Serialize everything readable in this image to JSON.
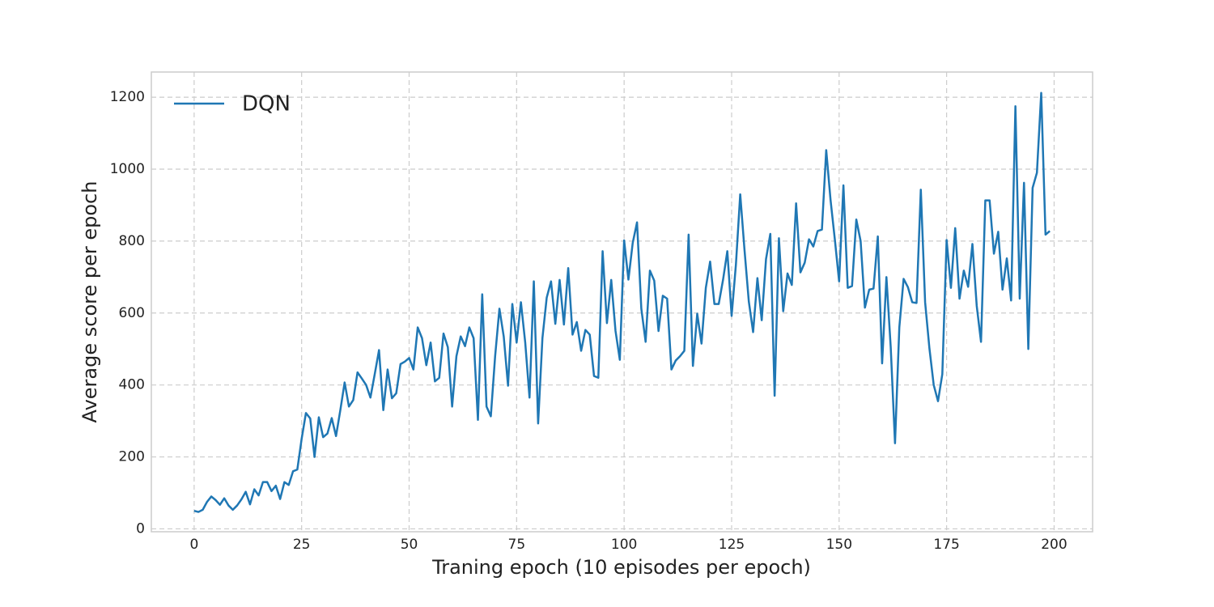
{
  "chart_data": {
    "type": "line",
    "xlabel": "Traning epoch (10 episodes per epoch)",
    "ylabel": "Average score per epoch",
    "x": [
      0,
      1,
      2,
      3,
      4,
      5,
      6,
      7,
      8,
      9,
      10,
      11,
      12,
      13,
      14,
      15,
      16,
      17,
      18,
      19,
      20,
      21,
      22,
      23,
      24,
      25,
      26,
      27,
      28,
      29,
      30,
      31,
      32,
      33,
      34,
      35,
      36,
      37,
      38,
      39,
      40,
      41,
      42,
      43,
      44,
      45,
      46,
      47,
      48,
      49,
      50,
      51,
      52,
      53,
      54,
      55,
      56,
      57,
      58,
      59,
      60,
      61,
      62,
      63,
      64,
      65,
      66,
      67,
      68,
      69,
      70,
      71,
      72,
      73,
      74,
      75,
      76,
      77,
      78,
      79,
      80,
      81,
      82,
      83,
      84,
      85,
      86,
      87,
      88,
      89,
      90,
      91,
      92,
      93,
      94,
      95,
      96,
      97,
      98,
      99,
      100,
      101,
      102,
      103,
      104,
      105,
      106,
      107,
      108,
      109,
      110,
      111,
      112,
      113,
      114,
      115,
      116,
      117,
      118,
      119,
      120,
      121,
      122,
      123,
      124,
      125,
      126,
      127,
      128,
      129,
      130,
      131,
      132,
      133,
      134,
      135,
      136,
      137,
      138,
      139,
      140,
      141,
      142,
      143,
      144,
      145,
      146,
      147,
      148,
      149,
      150,
      151,
      152,
      153,
      154,
      155,
      156,
      157,
      158,
      159,
      160,
      161,
      162,
      163,
      164,
      165,
      166,
      167,
      168,
      169,
      170,
      171,
      172,
      173,
      174,
      175,
      176,
      177,
      178,
      179,
      180,
      181,
      182,
      183,
      184,
      185,
      186,
      187,
      188,
      189,
      190,
      191,
      192,
      193,
      194,
      195,
      196,
      197,
      198,
      199
    ],
    "series": [
      {
        "name": "DQN",
        "color": "#1f77b4",
        "values": [
          50,
          47,
          53,
          75,
          90,
          80,
          67,
          85,
          65,
          53,
          65,
          82,
          103,
          68,
          110,
          93,
          130,
          130,
          105,
          120,
          83,
          130,
          122,
          160,
          165,
          250,
          322,
          307,
          200,
          310,
          255,
          265,
          308,
          258,
          330,
          407,
          340,
          358,
          435,
          418,
          400,
          365,
          430,
          497,
          330,
          443,
          363,
          377,
          458,
          465,
          475,
          443,
          560,
          530,
          455,
          518,
          410,
          420,
          543,
          505,
          340,
          480,
          535,
          508,
          560,
          530,
          303,
          652,
          340,
          313,
          480,
          612,
          535,
          398,
          625,
          518,
          630,
          518,
          365,
          688,
          293,
          530,
          643,
          688,
          570,
          692,
          568,
          725,
          540,
          575,
          495,
          553,
          540,
          425,
          420,
          772,
          572,
          692,
          550,
          470,
          802,
          693,
          795,
          852,
          612,
          520,
          718,
          690,
          550,
          648,
          640,
          443,
          468,
          480,
          495,
          818,
          453,
          598,
          515,
          670,
          743,
          625,
          625,
          692,
          772,
          592,
          735,
          930,
          775,
          632,
          547,
          697,
          580,
          750,
          820,
          370,
          808,
          605,
          710,
          678,
          905,
          713,
          740,
          805,
          785,
          828,
          832,
          1053,
          915,
          805,
          688,
          955,
          670,
          675,
          860,
          800,
          615,
          665,
          668,
          813,
          460,
          700,
          505,
          238,
          560,
          695,
          672,
          630,
          628,
          943,
          630,
          502,
          400,
          355,
          430,
          803,
          670,
          836,
          640,
          718,
          673,
          792,
          620,
          520,
          913,
          913,
          765,
          826,
          665,
          752,
          635,
          1175,
          640,
          962,
          500,
          948,
          990,
          1212,
          818,
          828
        ]
      }
    ],
    "xlim": [
      -9.95,
      208.95
    ],
    "ylim": [
      -8,
      1270
    ],
    "xticks": [
      0,
      25,
      50,
      75,
      100,
      125,
      150,
      175,
      200
    ],
    "yticks": [
      0,
      200,
      400,
      600,
      800,
      1000,
      1200
    ],
    "grid": true,
    "legend": "upper left"
  }
}
